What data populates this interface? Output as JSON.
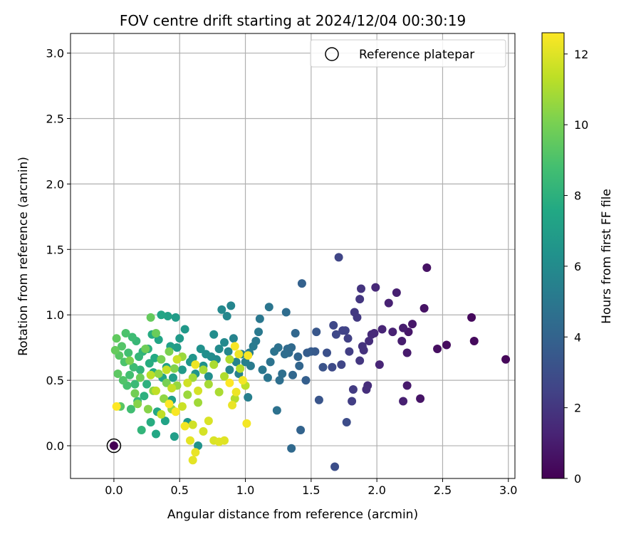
{
  "chart_data": {
    "type": "scatter",
    "title": "FOV centre drift starting at 2024/12/04 00:30:19",
    "xlabel": "Angular distance from reference (arcmin)",
    "ylabel": "Rotation from reference (arcmin)",
    "xlim": [
      -0.33,
      3.05
    ],
    "ylim": [
      -0.25,
      3.15
    ],
    "xticks": [
      0.0,
      0.5,
      1.0,
      1.5,
      2.0,
      2.5,
      3.0
    ],
    "yticks": [
      0.0,
      0.5,
      1.0,
      1.5,
      2.0,
      2.5,
      3.0
    ],
    "grid": true,
    "legend": {
      "placement": "top-right",
      "entries": [
        "Reference platepar"
      ]
    },
    "colorbar": {
      "label": "Hours from first FF file",
      "range": [
        0,
        12.6
      ],
      "ticks": [
        0,
        2,
        4,
        6,
        8,
        10,
        12
      ],
      "colormap": "viridis"
    },
    "reference_point": {
      "x": 0.0,
      "y": 0.0,
      "hours": 0
    },
    "series": [
      {
        "comment_fields": [
          "x",
          "y",
          "hours"
        ],
        "points": [
          [
            2.98,
            0.66,
            0.2
          ],
          [
            2.74,
            0.8,
            0.3
          ],
          [
            2.72,
            0.98,
            0.3
          ],
          [
            2.53,
            0.77,
            0.4
          ],
          [
            2.46,
            0.74,
            0.5
          ],
          [
            2.38,
            1.36,
            0.6
          ],
          [
            2.36,
            1.05,
            0.6
          ],
          [
            2.33,
            0.36,
            0.7
          ],
          [
            2.27,
            0.93,
            0.8
          ],
          [
            2.24,
            0.87,
            0.8
          ],
          [
            2.23,
            0.71,
            0.9
          ],
          [
            2.23,
            0.46,
            0.9
          ],
          [
            2.2,
            0.9,
            1.0
          ],
          [
            2.19,
            0.8,
            1.0
          ],
          [
            2.2,
            0.34,
            1.1
          ],
          [
            2.15,
            1.17,
            1.1
          ],
          [
            2.12,
            0.87,
            1.2
          ],
          [
            2.09,
            1.09,
            1.2
          ],
          [
            2.04,
            0.89,
            1.3
          ],
          [
            2.02,
            0.62,
            1.3
          ],
          [
            1.99,
            1.21,
            1.4
          ],
          [
            1.98,
            0.86,
            1.4
          ],
          [
            1.96,
            0.85,
            1.5
          ],
          [
            1.94,
            0.8,
            1.6
          ],
          [
            1.93,
            0.46,
            1.6
          ],
          [
            1.92,
            0.43,
            1.7
          ],
          [
            1.9,
            0.73,
            1.8
          ],
          [
            1.89,
            0.76,
            1.8
          ],
          [
            1.88,
            1.2,
            1.9
          ],
          [
            1.87,
            1.12,
            2.0
          ],
          [
            1.87,
            0.65,
            2.0
          ],
          [
            1.85,
            0.98,
            2.1
          ],
          [
            1.83,
            1.02,
            2.1
          ],
          [
            1.82,
            0.43,
            2.2
          ],
          [
            1.81,
            0.34,
            2.3
          ],
          [
            1.79,
            0.72,
            2.3
          ],
          [
            1.78,
            0.82,
            2.4
          ],
          [
            1.76,
            0.88,
            2.5
          ],
          [
            1.74,
            0.88,
            2.5
          ],
          [
            1.73,
            0.62,
            2.6
          ],
          [
            1.71,
            1.44,
            2.6
          ],
          [
            1.69,
            0.85,
            2.7
          ],
          [
            1.67,
            0.92,
            2.7
          ],
          [
            1.66,
            0.6,
            2.8
          ],
          [
            1.77,
            0.18,
            2.9
          ],
          [
            1.68,
            -0.16,
            3.0
          ],
          [
            1.62,
            0.71,
            3.1
          ],
          [
            1.59,
            0.6,
            3.2
          ],
          [
            1.56,
            0.35,
            3.3
          ],
          [
            1.54,
            0.87,
            3.4
          ],
          [
            1.53,
            0.72,
            3.5
          ],
          [
            1.5,
            0.72,
            3.6
          ],
          [
            1.47,
            0.71,
            3.7
          ],
          [
            1.46,
            0.5,
            3.8
          ],
          [
            1.43,
            1.24,
            3.9
          ],
          [
            1.42,
            0.12,
            4.0
          ],
          [
            1.41,
            0.61,
            4.1
          ],
          [
            1.4,
            0.68,
            4.1
          ],
          [
            1.38,
            0.86,
            4.2
          ],
          [
            1.36,
            0.54,
            4.2
          ],
          [
            1.35,
            -0.02,
            4.3
          ],
          [
            1.35,
            0.75,
            4.3
          ],
          [
            1.33,
            0.71,
            4.4
          ],
          [
            1.32,
            0.74,
            4.4
          ],
          [
            1.31,
            1.02,
            4.5
          ],
          [
            1.3,
            0.7,
            4.5
          ],
          [
            1.28,
            0.55,
            4.6
          ],
          [
            1.26,
            0.5,
            4.6
          ],
          [
            1.25,
            0.75,
            4.7
          ],
          [
            1.24,
            0.27,
            4.7
          ],
          [
            1.22,
            0.72,
            4.8
          ],
          [
            1.19,
            0.64,
            4.8
          ],
          [
            1.18,
            1.06,
            4.9
          ],
          [
            1.17,
            0.52,
            4.9
          ],
          [
            1.13,
            0.58,
            5.0
          ],
          [
            1.11,
            0.97,
            5.0
          ],
          [
            1.1,
            0.87,
            5.1
          ],
          [
            1.08,
            0.8,
            5.1
          ],
          [
            1.06,
            0.76,
            5.2
          ],
          [
            1.04,
            0.61,
            5.2
          ],
          [
            1.03,
            0.71,
            5.3
          ],
          [
            1.02,
            0.37,
            5.4
          ],
          [
            1.0,
            0.64,
            5.4
          ],
          [
            0.97,
            0.7,
            5.5
          ],
          [
            0.95,
            0.55,
            5.5
          ],
          [
            0.93,
            0.64,
            5.6
          ],
          [
            0.91,
            0.82,
            5.6
          ],
          [
            0.89,
            1.07,
            5.7
          ],
          [
            0.88,
            0.58,
            5.7
          ],
          [
            0.87,
            0.72,
            5.8
          ],
          [
            0.86,
            0.99,
            5.8
          ],
          [
            0.84,
            0.79,
            5.9
          ],
          [
            0.82,
            1.04,
            5.9
          ],
          [
            0.8,
            0.74,
            6.0
          ],
          [
            0.78,
            0.66,
            6.0
          ],
          [
            0.76,
            0.85,
            6.1
          ],
          [
            0.74,
            0.68,
            6.1
          ],
          [
            0.72,
            0.53,
            6.2
          ],
          [
            0.7,
            0.7,
            6.2
          ],
          [
            0.68,
            0.61,
            6.3
          ],
          [
            0.66,
            0.74,
            6.3
          ],
          [
            0.64,
            0.0,
            6.4
          ],
          [
            0.62,
            0.55,
            6.5
          ],
          [
            0.6,
            0.67,
            6.5
          ],
          [
            0.58,
            0.64,
            6.6
          ],
          [
            0.56,
            0.18,
            6.7
          ],
          [
            0.54,
            0.89,
            6.7
          ],
          [
            0.52,
            0.58,
            6.8
          ],
          [
            0.5,
            0.82,
            6.8
          ],
          [
            0.48,
            0.75,
            6.9
          ],
          [
            0.47,
            0.98,
            6.9
          ],
          [
            0.46,
            0.07,
            7.0
          ],
          [
            0.45,
            0.52,
            7.0
          ],
          [
            0.44,
            0.35,
            7.1
          ],
          [
            0.43,
            0.76,
            7.1
          ],
          [
            0.41,
            0.99,
            7.2
          ],
          [
            0.4,
            0.6,
            7.2
          ],
          [
            0.39,
            0.19,
            7.3
          ],
          [
            0.37,
            0.52,
            7.3
          ],
          [
            0.36,
            1.0,
            7.4
          ],
          [
            0.34,
            0.81,
            7.4
          ],
          [
            0.33,
            0.26,
            7.5
          ],
          [
            0.32,
            0.09,
            7.5
          ],
          [
            0.31,
            0.67,
            7.6
          ],
          [
            0.3,
            0.56,
            7.6
          ],
          [
            0.29,
            0.85,
            7.7
          ],
          [
            0.28,
            0.18,
            7.8
          ],
          [
            0.27,
            0.63,
            7.8
          ],
          [
            0.26,
            0.74,
            7.9
          ],
          [
            0.25,
            0.47,
            8.0
          ],
          [
            0.23,
            0.38,
            8.0
          ],
          [
            0.22,
            0.72,
            8.1
          ],
          [
            0.21,
            0.12,
            8.2
          ],
          [
            0.2,
            0.58,
            8.2
          ],
          [
            0.19,
            0.68,
            8.3
          ],
          [
            0.18,
            0.34,
            8.4
          ],
          [
            0.17,
            0.8,
            8.4
          ],
          [
            0.16,
            0.47,
            8.5
          ],
          [
            0.15,
            0.6,
            8.6
          ],
          [
            0.14,
            0.83,
            8.6
          ],
          [
            0.13,
            0.28,
            8.7
          ],
          [
            0.12,
            0.54,
            8.8
          ],
          [
            0.11,
            0.71,
            8.8
          ],
          [
            0.1,
            0.46,
            8.9
          ],
          [
            0.09,
            0.86,
            9.0
          ],
          [
            0.08,
            0.64,
            9.0
          ],
          [
            0.07,
            0.5,
            9.1
          ],
          [
            0.06,
            0.76,
            9.2
          ],
          [
            0.05,
            0.3,
            9.3
          ],
          [
            0.04,
            0.69,
            9.3
          ],
          [
            0.03,
            0.55,
            9.4
          ],
          [
            0.02,
            0.82,
            9.5
          ],
          [
            0.01,
            0.73,
            9.6
          ],
          [
            0.28,
            0.98,
            9.6
          ],
          [
            0.32,
            0.86,
            9.7
          ],
          [
            0.24,
            0.74,
            9.8
          ],
          [
            0.2,
            0.52,
            9.8
          ],
          [
            0.16,
            0.4,
            9.9
          ],
          [
            0.36,
            0.66,
            10.0
          ],
          [
            0.4,
            0.48,
            10.0
          ],
          [
            0.12,
            0.65,
            10.1
          ],
          [
            0.42,
            0.72,
            10.1
          ],
          [
            0.46,
            0.59,
            10.2
          ],
          [
            0.18,
            0.32,
            10.3
          ],
          [
            0.26,
            0.28,
            10.3
          ],
          [
            0.3,
            0.42,
            10.4
          ],
          [
            0.34,
            0.55,
            10.5
          ],
          [
            0.38,
            0.36,
            10.5
          ],
          [
            0.44,
            0.28,
            10.6
          ],
          [
            0.48,
            0.46,
            10.6
          ],
          [
            0.52,
            0.68,
            10.7
          ],
          [
            0.56,
            0.39,
            10.7
          ],
          [
            0.6,
            0.52,
            10.8
          ],
          [
            0.64,
            0.33,
            10.8
          ],
          [
            0.68,
            0.58,
            10.9
          ],
          [
            0.72,
            0.47,
            10.9
          ],
          [
            0.76,
            0.62,
            11.0
          ],
          [
            0.8,
            0.41,
            11.0
          ],
          [
            0.84,
            0.53,
            11.1
          ],
          [
            0.88,
            0.66,
            11.1
          ],
          [
            0.92,
            0.36,
            11.2
          ],
          [
            0.96,
            0.59,
            11.2
          ],
          [
            1.0,
            0.46,
            11.3
          ],
          [
            0.28,
            0.54,
            11.3
          ],
          [
            0.32,
            0.42,
            11.4
          ],
          [
            0.36,
            0.24,
            11.4
          ],
          [
            0.4,
            0.58,
            11.5
          ],
          [
            0.44,
            0.44,
            11.5
          ],
          [
            0.48,
            0.66,
            11.6
          ],
          [
            0.52,
            0.3,
            11.6
          ],
          [
            0.56,
            0.48,
            11.7
          ],
          [
            0.6,
            0.16,
            11.7
          ],
          [
            0.64,
            0.42,
            11.8
          ],
          [
            0.68,
            0.11,
            11.8
          ],
          [
            0.72,
            0.19,
            11.9
          ],
          [
            0.76,
            0.04,
            11.9
          ],
          [
            0.8,
            0.03,
            12.0
          ],
          [
            0.84,
            0.04,
            12.0
          ],
          [
            0.58,
            0.04,
            12.1
          ],
          [
            0.6,
            -0.11,
            12.1
          ],
          [
            0.62,
            -0.05,
            12.2
          ],
          [
            0.9,
            0.31,
            12.2
          ],
          [
            0.93,
            0.41,
            12.3
          ],
          [
            0.95,
            0.7,
            12.3
          ],
          [
            0.98,
            0.5,
            12.4
          ],
          [
            1.01,
            0.17,
            12.4
          ],
          [
            1.02,
            0.69,
            12.5
          ],
          [
            0.92,
            0.76,
            12.5
          ],
          [
            0.88,
            0.48,
            12.6
          ],
          [
            0.02,
            0.3,
            12.6
          ],
          [
            0.42,
            0.32,
            12.6
          ],
          [
            0.47,
            0.26,
            12.5
          ],
          [
            0.54,
            0.15,
            12.4
          ],
          [
            0.62,
            0.62,
            12.3
          ]
        ]
      }
    ]
  }
}
